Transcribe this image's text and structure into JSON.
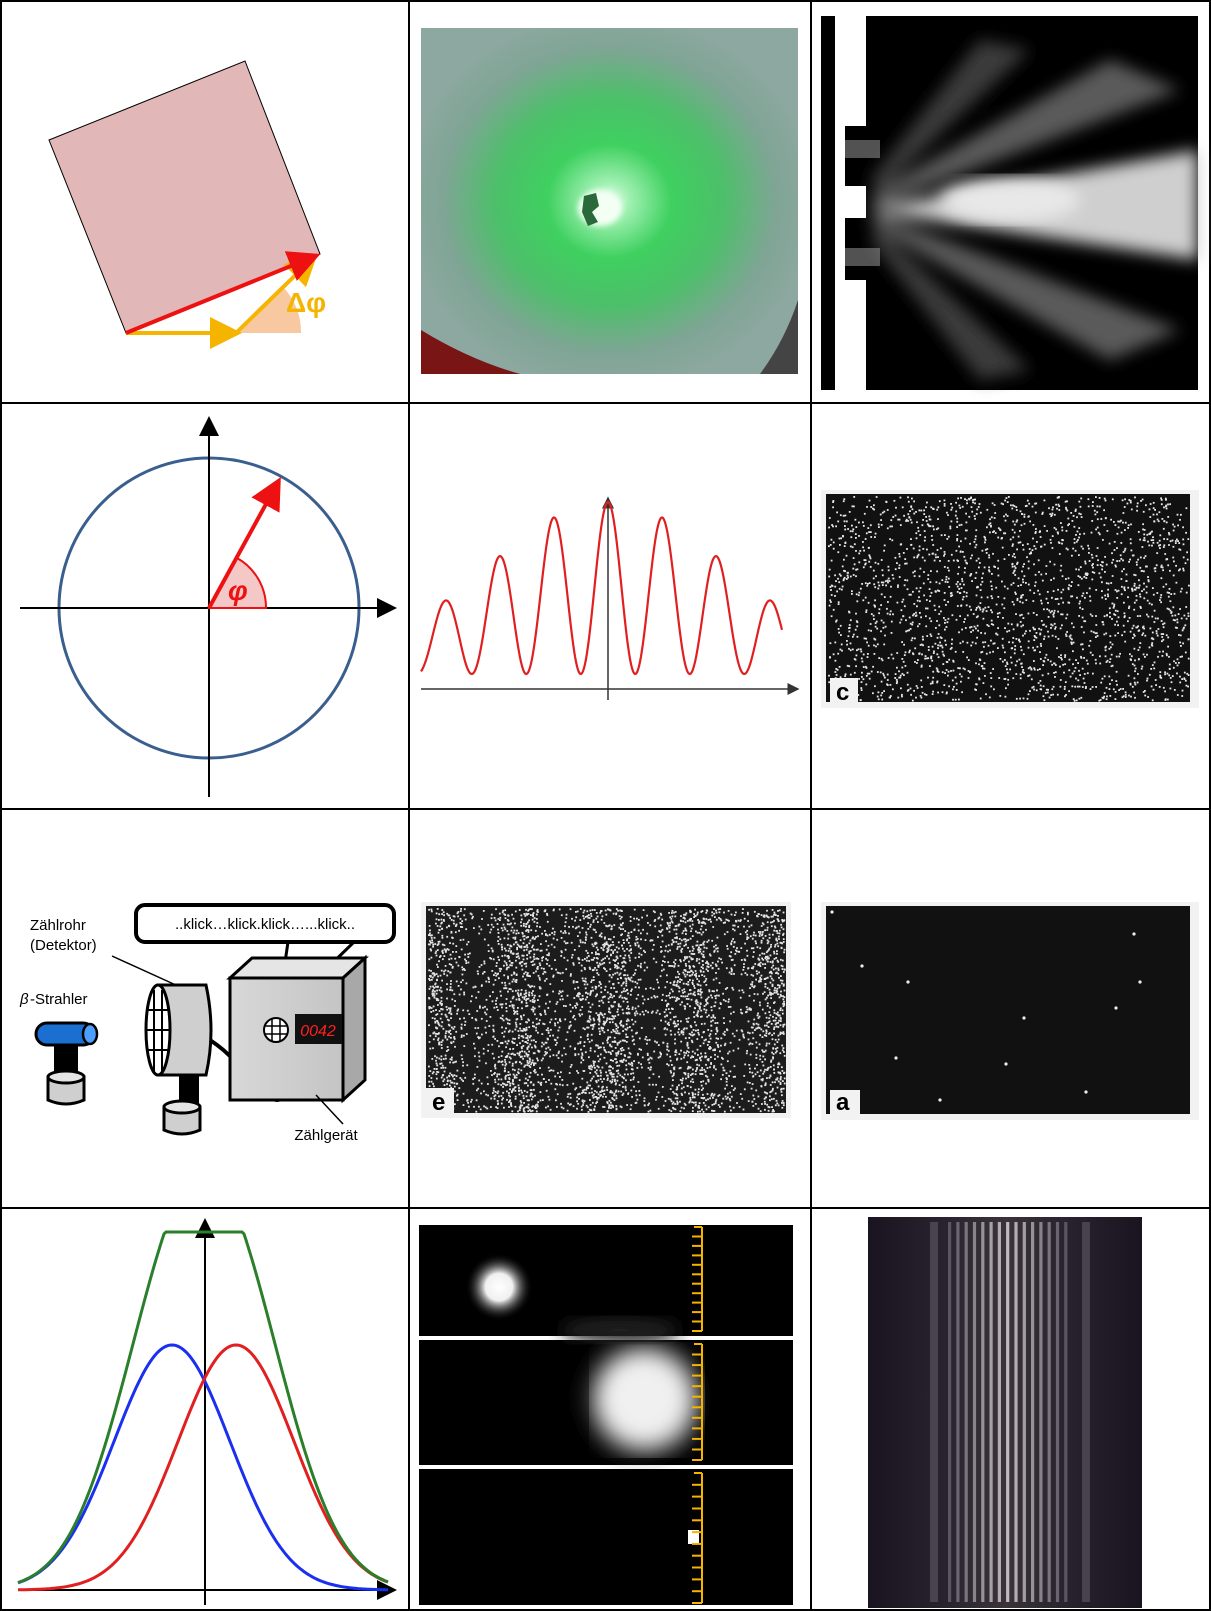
{
  "cells": {
    "rotation": {
      "delta_label": "Δφ"
    },
    "phasor": {
      "angle_label": "φ"
    },
    "panels": {
      "c": "c",
      "e": "e",
      "a": "a"
    },
    "detector": {
      "speech": "..klick…klick.klick…...klick..",
      "tube_label_1": "Zählrohr",
      "tube_label_2": "(Detektor)",
      "source_symbol": "β",
      "source_label": "-Strahler",
      "counter_display": "0042",
      "counter_label": "Zählgerät"
    }
  },
  "colors": {
    "rect_fill": "#e1b7b7",
    "red": "#ee1111",
    "orange": "#f5b400",
    "circle_blue": "#3a5f8f",
    "curve_red": "#e02020",
    "green": "#2a7f2a",
    "blue": "#1a2ff0",
    "tube_blue": "#1a6fd0",
    "display_red": "#ff2020"
  }
}
